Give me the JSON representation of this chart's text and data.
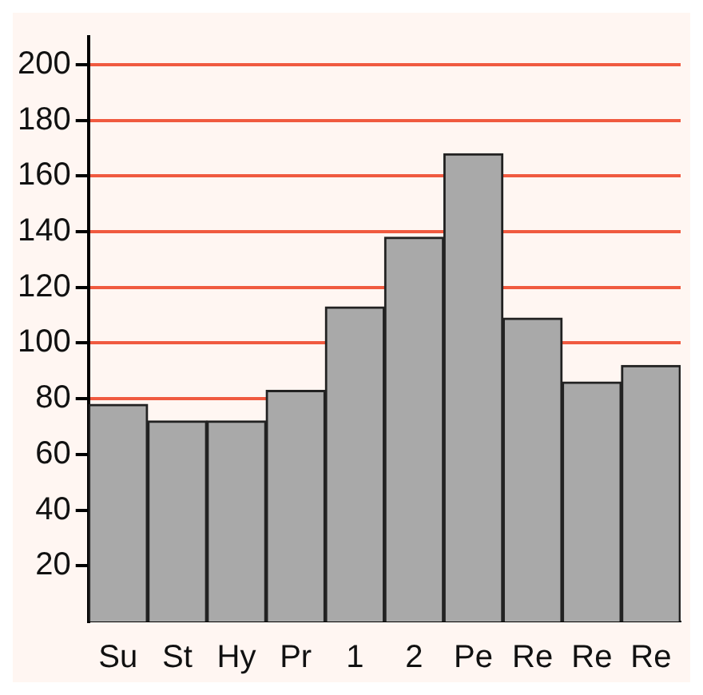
{
  "chart_data": {
    "type": "bar",
    "categories": [
      "Su",
      "St",
      "Hy",
      "Pr",
      "1",
      "2",
      "Pe",
      "Re",
      "Re",
      "Re"
    ],
    "values": [
      78,
      72,
      72,
      83,
      113,
      138,
      168,
      109,
      86,
      92
    ],
    "color": "#a9a9a9",
    "ylim": [
      0,
      210
    ],
    "yticks": [
      20,
      40,
      60,
      80,
      100,
      120,
      140,
      160,
      180,
      200
    ],
    "grid": "y"
  }
}
